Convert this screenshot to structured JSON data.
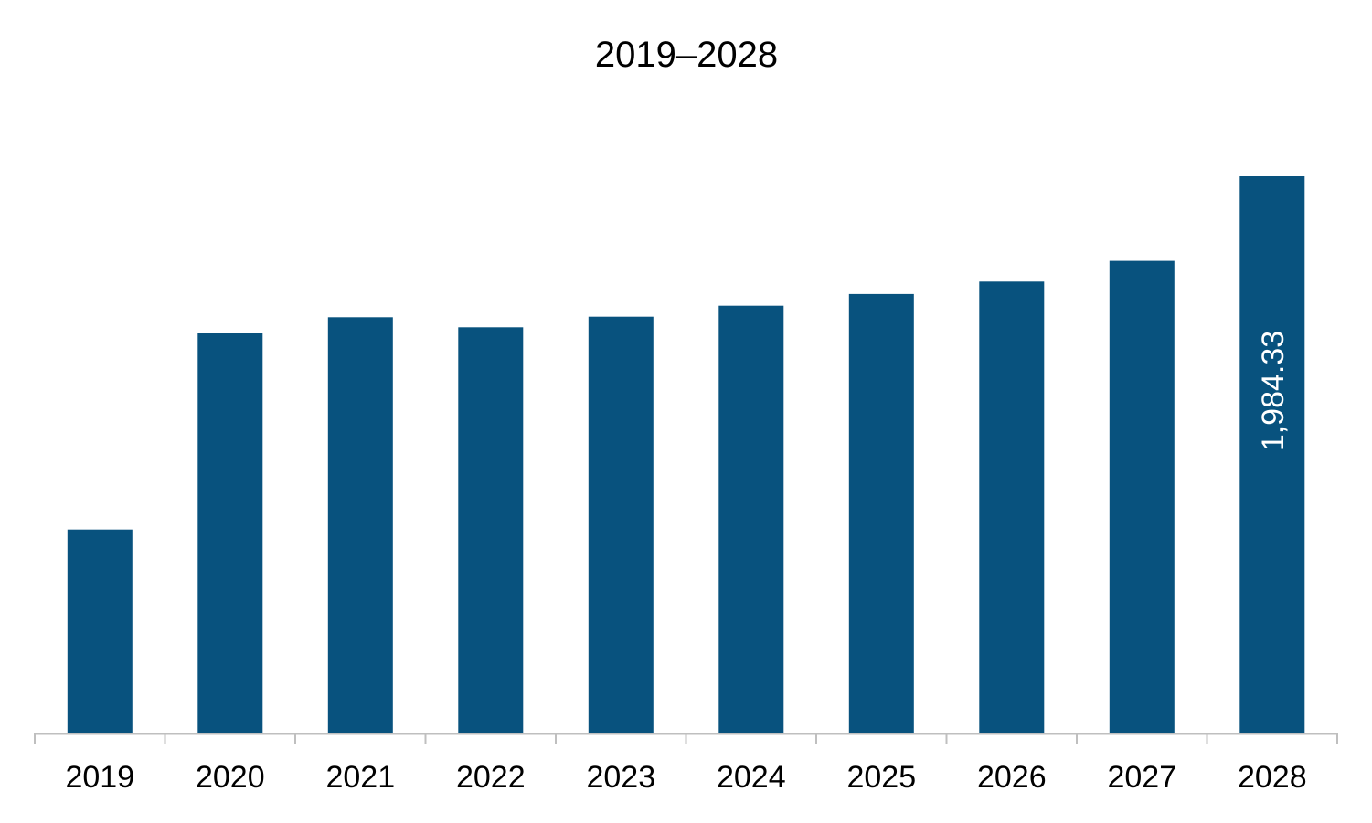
{
  "chart_data": {
    "type": "bar",
    "title": "2019–2028",
    "xlabel": "",
    "ylabel": "",
    "categories": [
      "2019",
      "2020",
      "2021",
      "2022",
      "2023",
      "2024",
      "2025",
      "2026",
      "2027",
      "2028"
    ],
    "values": [
      726.5,
      1424.9,
      1482.5,
      1446.7,
      1484.2,
      1523.4,
      1564.9,
      1609.3,
      1683.1,
      1984.33
    ],
    "data_labels": [
      {
        "category": "2028",
        "text": "1,984.33"
      }
    ],
    "ylim": [
      0,
      1984.33
    ],
    "grid": false,
    "legend": "none",
    "bar_color": "#08527e",
    "axis_color": "#bfbfbf"
  }
}
